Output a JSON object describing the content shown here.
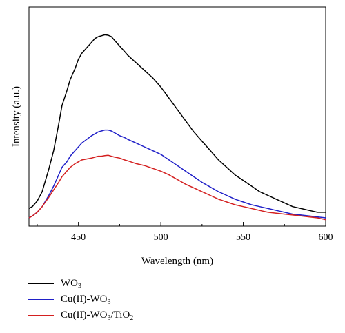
{
  "chart_data": {
    "type": "line",
    "xlabel": "Wavelength (nm)",
    "ylabel": "Intensity (a.u.)",
    "xlim": [
      420,
      600
    ],
    "ylim": [
      0,
      1
    ],
    "xticks": [
      450,
      500,
      550,
      600
    ],
    "yticks_labeled": false,
    "grid": false,
    "legend_position": "below",
    "colors": {
      "WO3": "#000000",
      "CuWO3": "#2020c8",
      "CuWO3TiO2": "#d42020"
    },
    "series": [
      {
        "name": "WO3",
        "label_main": "WO",
        "label_sub": "3",
        "label_rest": "",
        "label_sub2": "",
        "x": [
          420,
          422,
          425,
          428,
          430,
          432,
          435,
          438,
          440,
          443,
          445,
          448,
          450,
          452,
          455,
          458,
          460,
          462,
          464,
          466,
          468,
          470,
          472,
          475,
          478,
          480,
          485,
          490,
          495,
          500,
          505,
          510,
          515,
          520,
          525,
          530,
          535,
          540,
          545,
          550,
          555,
          560,
          565,
          570,
          575,
          580,
          585,
          590,
          595,
          600
        ],
        "y": [
          0.05,
          0.06,
          0.09,
          0.14,
          0.2,
          0.26,
          0.36,
          0.5,
          0.6,
          0.68,
          0.74,
          0.8,
          0.85,
          0.88,
          0.91,
          0.94,
          0.96,
          0.97,
          0.975,
          0.98,
          0.978,
          0.97,
          0.95,
          0.92,
          0.89,
          0.87,
          0.83,
          0.79,
          0.75,
          0.7,
          0.64,
          0.58,
          0.52,
          0.46,
          0.41,
          0.36,
          0.31,
          0.27,
          0.23,
          0.2,
          0.17,
          0.14,
          0.12,
          0.1,
          0.08,
          0.06,
          0.05,
          0.04,
          0.03,
          0.03
        ]
      },
      {
        "name": "Cu(II)-WO3",
        "label_main": "Cu(II)-WO",
        "label_sub": "3",
        "label_rest": "",
        "label_sub2": "",
        "x": [
          420,
          422,
          425,
          428,
          430,
          432,
          435,
          438,
          440,
          443,
          445,
          448,
          450,
          452,
          455,
          458,
          460,
          462,
          464,
          466,
          468,
          470,
          472,
          475,
          478,
          480,
          485,
          490,
          495,
          500,
          505,
          510,
          515,
          520,
          525,
          530,
          535,
          540,
          545,
          550,
          555,
          560,
          565,
          570,
          575,
          580,
          585,
          590,
          595,
          600
        ],
        "y": [
          0.0,
          0.01,
          0.03,
          0.06,
          0.09,
          0.12,
          0.17,
          0.23,
          0.27,
          0.3,
          0.33,
          0.36,
          0.38,
          0.4,
          0.42,
          0.44,
          0.45,
          0.46,
          0.465,
          0.47,
          0.47,
          0.465,
          0.455,
          0.44,
          0.43,
          0.42,
          0.4,
          0.38,
          0.36,
          0.34,
          0.31,
          0.28,
          0.25,
          0.22,
          0.19,
          0.165,
          0.14,
          0.12,
          0.1,
          0.085,
          0.07,
          0.06,
          0.05,
          0.04,
          0.03,
          0.02,
          0.015,
          0.01,
          0.005,
          0.0
        ]
      },
      {
        "name": "Cu(II)-WO3/TiO2",
        "label_main": "Cu(II)-WO",
        "label_sub": "3",
        "label_rest": "/TiO",
        "label_sub2": "2",
        "x": [
          420,
          422,
          425,
          428,
          430,
          432,
          435,
          438,
          440,
          443,
          445,
          448,
          450,
          452,
          455,
          458,
          460,
          462,
          464,
          466,
          468,
          470,
          472,
          475,
          478,
          480,
          485,
          490,
          495,
          500,
          505,
          510,
          515,
          520,
          525,
          530,
          535,
          540,
          545,
          550,
          555,
          560,
          565,
          570,
          575,
          580,
          585,
          590,
          595,
          600
        ],
        "y": [
          0.0,
          0.01,
          0.03,
          0.06,
          0.085,
          0.11,
          0.15,
          0.19,
          0.22,
          0.25,
          0.27,
          0.29,
          0.3,
          0.31,
          0.315,
          0.32,
          0.325,
          0.33,
          0.33,
          0.333,
          0.335,
          0.33,
          0.325,
          0.32,
          0.31,
          0.305,
          0.29,
          0.28,
          0.265,
          0.25,
          0.23,
          0.205,
          0.18,
          0.16,
          0.14,
          0.12,
          0.1,
          0.085,
          0.07,
          0.06,
          0.05,
          0.04,
          0.03,
          0.025,
          0.02,
          0.015,
          0.01,
          0.005,
          0.0,
          -0.01
        ]
      }
    ]
  }
}
